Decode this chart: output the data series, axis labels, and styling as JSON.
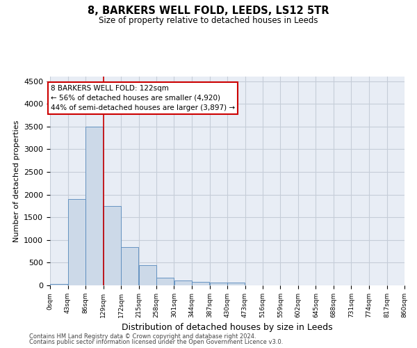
{
  "title": "8, BARKERS WELL FOLD, LEEDS, LS12 5TR",
  "subtitle": "Size of property relative to detached houses in Leeds",
  "xlabel": "Distribution of detached houses by size in Leeds",
  "ylabel": "Number of detached properties",
  "bar_color": "#ccd9e8",
  "bar_edge_color": "#5588bb",
  "background_color": "#ffffff",
  "plot_bg_color": "#e8edf5",
  "grid_color": "#c5cdd8",
  "annotation_line_color": "#cc0000",
  "bin_edges": [
    0,
    43,
    86,
    129,
    172,
    215,
    258,
    301,
    344,
    387,
    430,
    473,
    516,
    559,
    602,
    645,
    688,
    731,
    774,
    817,
    860
  ],
  "bin_labels": [
    "0sqm",
    "43sqm",
    "86sqm",
    "129sqm",
    "172sqm",
    "215sqm",
    "258sqm",
    "301sqm",
    "344sqm",
    "387sqm",
    "430sqm",
    "473sqm",
    "516sqm",
    "559sqm",
    "602sqm",
    "645sqm",
    "688sqm",
    "731sqm",
    "774sqm",
    "817sqm",
    "860sqm"
  ],
  "bar_heights": [
    35,
    1900,
    3500,
    1750,
    840,
    450,
    175,
    105,
    75,
    55,
    55,
    0,
    0,
    0,
    0,
    0,
    0,
    0,
    0,
    0
  ],
  "property_line_x": 129,
  "ylim": [
    0,
    4600
  ],
  "yticks": [
    0,
    500,
    1000,
    1500,
    2000,
    2500,
    3000,
    3500,
    4000,
    4500
  ],
  "annotation_text": "8 BARKERS WELL FOLD: 122sqm\n← 56% of detached houses are smaller (4,920)\n44% of semi-detached houses are larger (3,897) →",
  "footer_line1": "Contains HM Land Registry data © Crown copyright and database right 2024.",
  "footer_line2": "Contains public sector information licensed under the Open Government Licence v3.0."
}
